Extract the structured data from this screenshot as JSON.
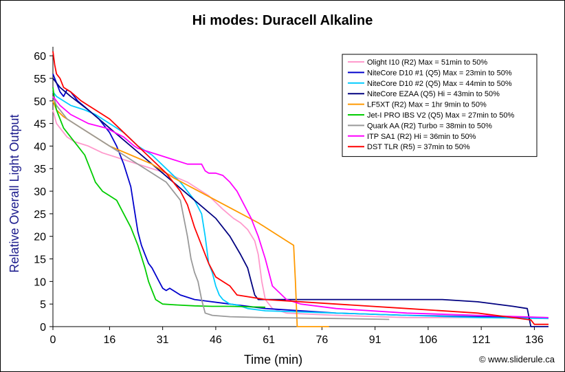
{
  "chart_data": {
    "type": "line",
    "title": "Hi modes: Duracell Alkaline",
    "xlabel": "Time (min)",
    "ylabel": "Relative Overall Light Output",
    "xlim": [
      0,
      140
    ],
    "ylim": [
      0,
      62
    ],
    "xticks": [
      0,
      16,
      31,
      46,
      61,
      76,
      91,
      106,
      121,
      136
    ],
    "yticks": [
      0,
      5,
      10,
      15,
      20,
      25,
      30,
      35,
      40,
      45,
      50,
      55,
      60
    ],
    "grid": false,
    "legend_position": "top-right",
    "series": [
      {
        "name": "Olight I10 (R2) Max = 51min to 50%",
        "color": "#ff99cc",
        "x": [
          0,
          1,
          2,
          4,
          6,
          8,
          10,
          14,
          20,
          26,
          32,
          38,
          44,
          48,
          51,
          53,
          55,
          57,
          58,
          59,
          60,
          62,
          66,
          80,
          100,
          120,
          140
        ],
        "y": [
          48,
          45,
          44,
          42,
          41,
          40.5,
          40,
          38.5,
          37,
          35.5,
          34,
          32,
          29,
          26,
          24,
          23,
          21.5,
          19,
          16,
          10,
          6,
          4,
          3,
          2.5,
          2,
          2,
          1.8
        ]
      },
      {
        "name": "NiteCore D10 #1 (Q5) Max = 23min to 50%",
        "color": "#0000cc",
        "x": [
          0,
          0.5,
          1,
          2,
          3,
          4,
          5,
          7,
          10,
          13,
          16,
          18,
          20,
          22,
          23,
          24,
          25,
          26,
          27,
          28,
          30,
          31,
          32,
          33,
          34,
          36,
          40,
          50,
          60,
          80,
          100,
          120,
          140
        ],
        "y": [
          56,
          55,
          54,
          52,
          51,
          52.5,
          52,
          50,
          48,
          46,
          43,
          40,
          36,
          31,
          26,
          21,
          18,
          16,
          14,
          13,
          10,
          8.5,
          8,
          8.5,
          8,
          7,
          6,
          5,
          4,
          3,
          2.5,
          2.2,
          2
        ]
      },
      {
        "name": "NiteCore D10 #2 (Q5) Max = 44min to 50%",
        "color": "#00ccff",
        "x": [
          0,
          1,
          3,
          5,
          7,
          9,
          12,
          16,
          20,
          24,
          28,
          32,
          36,
          40,
          42,
          43,
          44,
          45,
          46,
          47,
          48,
          50,
          52,
          55,
          60,
          80,
          100,
          120,
          140
        ],
        "y": [
          52,
          51,
          50,
          49,
          48.5,
          48,
          47,
          45,
          43,
          40,
          38,
          35,
          32,
          28,
          25,
          20,
          14,
          12,
          9,
          7,
          6,
          5,
          4.8,
          4,
          3.5,
          3,
          2.5,
          2,
          1.8
        ]
      },
      {
        "name": "NiteCore EZAA (Q5) Hi = 43min to 50%",
        "color": "#000080",
        "x": [
          0,
          2,
          5,
          10,
          16,
          22,
          28,
          34,
          40,
          46,
          50,
          53,
          55,
          56,
          57,
          58,
          60,
          70,
          80,
          90,
          100,
          110,
          120,
          130,
          134,
          135,
          140
        ],
        "y": [
          55,
          53,
          51,
          48,
          44,
          40,
          36,
          32,
          28,
          24,
          20,
          16,
          13,
          10,
          7,
          6,
          6,
          6,
          6,
          6,
          6,
          6,
          5.5,
          4.5,
          4,
          0,
          0
        ]
      },
      {
        "name": "LF5XT (R2) Max = 1hr 9min to 50%",
        "color": "#ff9900",
        "x": [
          0,
          1,
          3,
          6,
          10,
          16,
          22,
          28,
          34,
          40,
          46,
          52,
          58,
          62,
          66,
          68,
          68.5,
          69,
          78
        ],
        "y": [
          50,
          48,
          46.5,
          45,
          43,
          40,
          38,
          36,
          33,
          30.5,
          28,
          25.5,
          23,
          21,
          19,
          18,
          10,
          0,
          0
        ]
      },
      {
        "name": "Jet-I PRO IBS V2 (Q5) Max = 27min to 50%",
        "color": "#00cc00",
        "x": [
          0,
          0.5,
          1,
          2,
          3,
          5,
          7,
          9,
          10,
          11,
          12,
          14,
          16,
          18,
          20,
          22,
          24,
          26,
          27,
          28,
          29,
          30,
          31,
          35,
          40,
          45,
          50,
          55,
          60
        ],
        "y": [
          53,
          50,
          48,
          46,
          44,
          42,
          40,
          38,
          36,
          34,
          32,
          30,
          29,
          28,
          25,
          22,
          18,
          13,
          10,
          8,
          6,
          5.5,
          5,
          4.8,
          4.6,
          4.5,
          4.5,
          4.4,
          4.3
        ]
      },
      {
        "name": "Quark AA (R2) Turbo = 38min to 50%",
        "color": "#999999",
        "x": [
          0,
          1,
          2,
          4,
          8,
          12,
          16,
          20,
          24,
          28,
          32,
          36,
          38,
          39,
          40,
          41,
          42,
          43,
          45,
          50,
          60,
          80,
          95
        ],
        "y": [
          51,
          49,
          48,
          46,
          44,
          42,
          40,
          38,
          36,
          34,
          32,
          28,
          20,
          15,
          12,
          10,
          6,
          3,
          2.5,
          2.2,
          2,
          1.8,
          1.6
        ]
      },
      {
        "name": "ITP SA1 (R2) Hi = 36min to 50%",
        "color": "#ff00ff",
        "x": [
          0,
          2,
          5,
          10,
          15,
          20,
          23,
          24,
          26,
          30,
          34,
          38,
          42,
          43,
          44,
          46,
          48,
          50,
          52,
          54,
          56,
          58,
          60,
          62,
          66,
          70,
          80,
          100,
          120,
          140
        ],
        "y": [
          51,
          49,
          47,
          45,
          44,
          42,
          40,
          39.5,
          39,
          38,
          37,
          36,
          36,
          34.5,
          34,
          34,
          33.5,
          32,
          30,
          27,
          24,
          20,
          15,
          9,
          6,
          5,
          4,
          3,
          2.5,
          2
        ]
      },
      {
        "name": "DST TLR (R5) = 37min to 50%",
        "color": "#ff0000",
        "x": [
          0,
          0.5,
          1,
          2,
          3,
          5,
          8,
          12,
          16,
          20,
          24,
          28,
          32,
          34,
          36,
          38,
          40,
          42,
          44,
          46,
          48,
          50,
          52,
          60,
          80,
          100,
          120,
          135,
          136,
          140
        ],
        "y": [
          61,
          58,
          56,
          55,
          53,
          52,
          50,
          48,
          46,
          43,
          40,
          37,
          34,
          32,
          30,
          27,
          22,
          18,
          14,
          11,
          10,
          9,
          7,
          6,
          5,
          4,
          3,
          1.5,
          0.5,
          0.5
        ]
      }
    ]
  },
  "copyright": "© www.sliderule.ca"
}
